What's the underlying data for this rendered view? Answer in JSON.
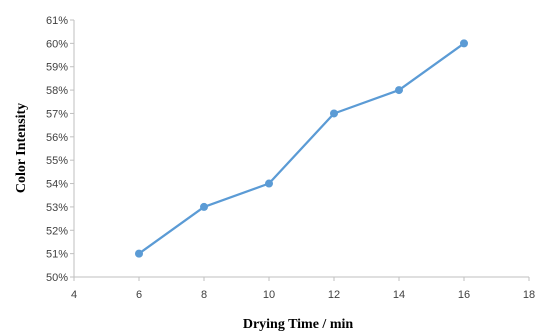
{
  "chart_data": {
    "type": "line",
    "title": "",
    "xlabel": "Drying Time / min",
    "ylabel": "Color Intensity",
    "xlim": [
      4,
      18
    ],
    "ylim": [
      50,
      61
    ],
    "x_ticks": [
      4,
      6,
      8,
      10,
      12,
      14,
      16,
      18
    ],
    "y_ticks": [
      50,
      51,
      52,
      53,
      54,
      55,
      56,
      57,
      58,
      59,
      60,
      61
    ],
    "y_tick_format": "percent",
    "grid": false,
    "legend": "none",
    "series": [
      {
        "color": "#5b9bd5",
        "x": [
          6,
          8,
          10,
          12,
          14,
          16
        ],
        "y": [
          51,
          53,
          54,
          57,
          58,
          60
        ]
      }
    ]
  }
}
